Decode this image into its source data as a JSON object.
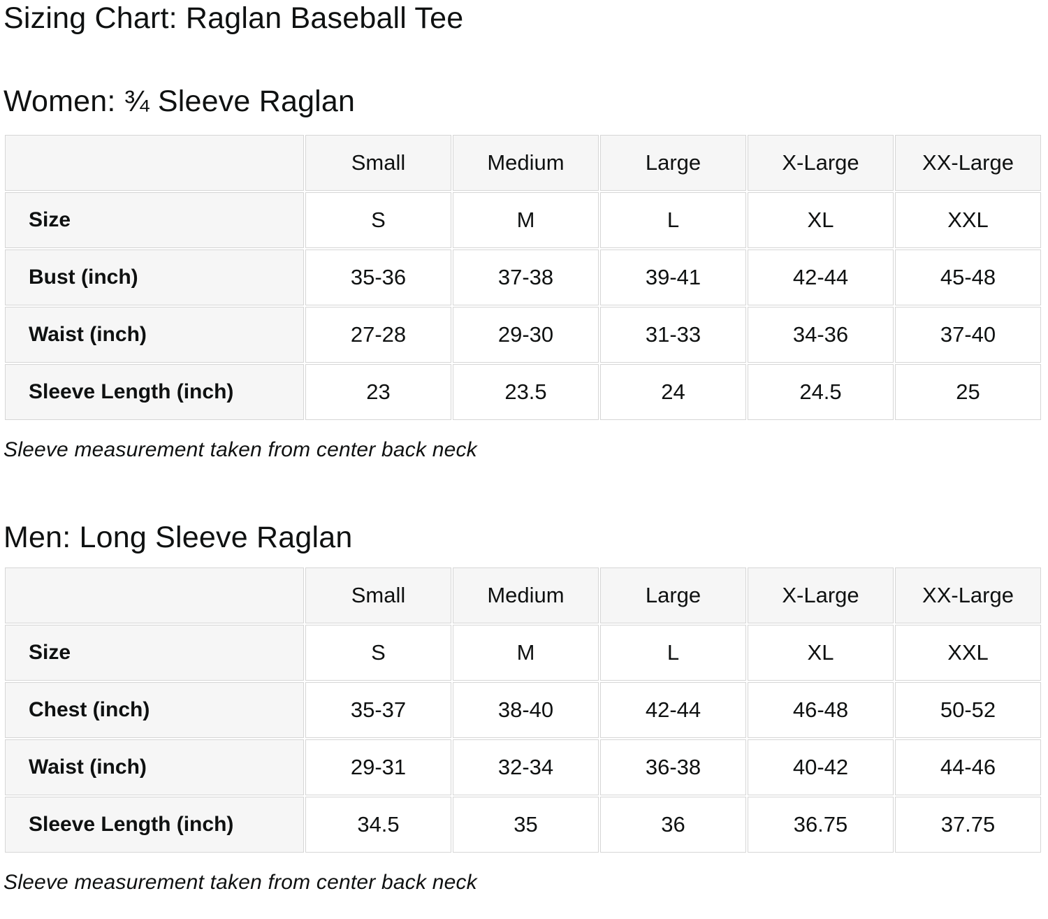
{
  "page": {
    "title": "Sizing Chart: Raglan Baseball Tee"
  },
  "colors": {
    "text": "#0f1111",
    "header_cell_bg": "#f6f6f6",
    "label_cell_bg": "#f6f6f6",
    "value_cell_bg": "#ffffff",
    "border": "#d6d6d6",
    "page_bg": "#ffffff"
  },
  "chart_data": [
    {
      "type": "table",
      "title": "Women: ¾ Sleeve Raglan",
      "columns": [
        "",
        "Small",
        "Medium",
        "Large",
        "X-Large",
        "XX-Large"
      ],
      "rows": [
        {
          "label": "Size",
          "values": [
            "S",
            "M",
            "L",
            "XL",
            "XXL"
          ]
        },
        {
          "label": "Bust (inch)",
          "values": [
            "35-36",
            "37-38",
            "39-41",
            "42-44",
            "45-48"
          ]
        },
        {
          "label": "Waist (inch)",
          "values": [
            "27-28",
            "29-30",
            "31-33",
            "34-36",
            "37-40"
          ]
        },
        {
          "label": "Sleeve Length (inch)",
          "values": [
            "23",
            "23.5",
            "24",
            "24.5",
            "25"
          ]
        }
      ],
      "footnote": "Sleeve measurement taken from center back neck"
    },
    {
      "type": "table",
      "title": "Men: Long Sleeve Raglan",
      "columns": [
        "",
        "Small",
        "Medium",
        "Large",
        "X-Large",
        "XX-Large"
      ],
      "rows": [
        {
          "label": "Size",
          "values": [
            "S",
            "M",
            "L",
            "XL",
            "XXL"
          ]
        },
        {
          "label": "Chest (inch)",
          "values": [
            "35-37",
            "38-40",
            "42-44",
            "46-48",
            "50-52"
          ]
        },
        {
          "label": "Waist (inch)",
          "values": [
            "29-31",
            "32-34",
            "36-38",
            "40-42",
            "44-46"
          ]
        },
        {
          "label": "Sleeve Length (inch)",
          "values": [
            "34.5",
            "35",
            "36",
            "36.75",
            "37.75"
          ]
        }
      ],
      "footnote": "Sleeve measurement taken from center back neck"
    }
  ]
}
